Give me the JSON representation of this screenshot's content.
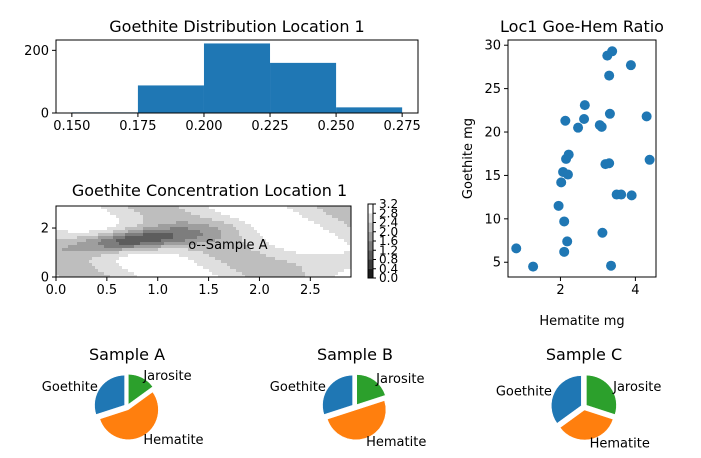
{
  "chart_data": [
    {
      "id": "histogram",
      "type": "bar",
      "title": "Goethite Distribution Location 1",
      "bin_edges": [
        0.15,
        0.175,
        0.2,
        0.225,
        0.25,
        0.275
      ],
      "counts": [
        2,
        88,
        222,
        160,
        18
      ],
      "xlim": [
        0.144,
        0.281
      ],
      "ylim": [
        0,
        233
      ],
      "x_ticks": [
        "0.150",
        "0.175",
        "0.200",
        "0.225",
        "0.250",
        "0.275"
      ],
      "y_ticks": [
        "0",
        "200"
      ],
      "color": "#1f77b4"
    },
    {
      "id": "scatter",
      "type": "scatter",
      "title": "Loc1 Goe-Hem Ratio",
      "xlabel": "Hematite mg",
      "ylabel": "Goethite mg",
      "xlim": [
        0.6,
        4.55
      ],
      "ylim": [
        3.3,
        30.6
      ],
      "x_ticks": [
        "2",
        "4"
      ],
      "y_ticks": [
        "5",
        "10",
        "15",
        "20",
        "25",
        "30"
      ],
      "color": "#1f77b4",
      "points": [
        {
          "x": 0.82,
          "y": 6.6
        },
        {
          "x": 1.27,
          "y": 4.5
        },
        {
          "x": 1.95,
          "y": 11.5
        },
        {
          "x": 2.02,
          "y": 14.2
        },
        {
          "x": 2.07,
          "y": 15.4
        },
        {
          "x": 2.1,
          "y": 9.7
        },
        {
          "x": 2.1,
          "y": 6.2
        },
        {
          "x": 2.13,
          "y": 21.3
        },
        {
          "x": 2.15,
          "y": 16.9
        },
        {
          "x": 2.18,
          "y": 7.4
        },
        {
          "x": 2.2,
          "y": 15.1
        },
        {
          "x": 2.22,
          "y": 17.4
        },
        {
          "x": 2.47,
          "y": 20.5
        },
        {
          "x": 2.65,
          "y": 23.1
        },
        {
          "x": 2.63,
          "y": 21.5
        },
        {
          "x": 3.05,
          "y": 20.8
        },
        {
          "x": 3.1,
          "y": 20.6
        },
        {
          "x": 3.12,
          "y": 8.4
        },
        {
          "x": 3.2,
          "y": 16.3
        },
        {
          "x": 3.25,
          "y": 28.8
        },
        {
          "x": 3.3,
          "y": 16.4
        },
        {
          "x": 3.3,
          "y": 26.5
        },
        {
          "x": 3.32,
          "y": 22.1
        },
        {
          "x": 3.35,
          "y": 4.6
        },
        {
          "x": 3.38,
          "y": 29.3
        },
        {
          "x": 3.5,
          "y": 12.8
        },
        {
          "x": 3.62,
          "y": 12.8
        },
        {
          "x": 3.9,
          "y": 12.7
        },
        {
          "x": 3.88,
          "y": 27.7
        },
        {
          "x": 4.3,
          "y": 21.8
        },
        {
          "x": 4.38,
          "y": 16.8
        }
      ]
    },
    {
      "id": "contour",
      "type": "heatmap",
      "title": "Goethite Concentration Location 1",
      "xlim": [
        0,
        2.9
      ],
      "ylim": [
        0,
        2.9
      ],
      "x_ticks": [
        "0.0",
        "0.5",
        "1.0",
        "1.5",
        "2.0",
        "2.5"
      ],
      "y_ticks": [
        "0",
        "2"
      ],
      "colormap": "gray",
      "levels": [
        0.0,
        0.4,
        0.8,
        1.2,
        1.6,
        2.0,
        2.4,
        2.8,
        3.2
      ],
      "colorbar_ticks": [
        "0.0",
        "0.4",
        "0.8",
        "1.2",
        "1.6",
        "2.0",
        "2.4",
        "2.8",
        "3.2"
      ],
      "annotation": "o--Sample A",
      "annotation_x": 1.3,
      "annotation_y": 1.35
    },
    {
      "id": "pie_a",
      "type": "pie",
      "title": "Sample A",
      "slices": [
        {
          "label": "Goethite",
          "value": 0.3,
          "color": "#1f77b4",
          "explode": 0.1
        },
        {
          "label": "Hematite",
          "value": 0.55,
          "color": "#ff7f0e",
          "explode": 0.1
        },
        {
          "label": "Jarosite",
          "value": 0.15,
          "color": "#2ca02c",
          "explode": 0.1
        }
      ]
    },
    {
      "id": "pie_b",
      "type": "pie",
      "title": "Sample B",
      "slices": [
        {
          "label": "Goethite",
          "value": 0.3,
          "color": "#1f77b4",
          "explode": 0.1
        },
        {
          "label": "Hematite",
          "value": 0.5,
          "color": "#ff7f0e",
          "explode": 0.1
        },
        {
          "label": "Jarosite",
          "value": 0.2,
          "color": "#2ca02c",
          "explode": 0.1
        }
      ]
    },
    {
      "id": "pie_c",
      "type": "pie",
      "title": "Sample C",
      "slices": [
        {
          "label": "Goethite",
          "value": 0.35,
          "color": "#1f77b4",
          "explode": 0.1
        },
        {
          "label": "Hematite",
          "value": 0.35,
          "color": "#ff7f0e",
          "explode": 0.1
        },
        {
          "label": "Jarosite",
          "value": 0.3,
          "color": "#2ca02c",
          "explode": 0.1
        }
      ]
    }
  ]
}
